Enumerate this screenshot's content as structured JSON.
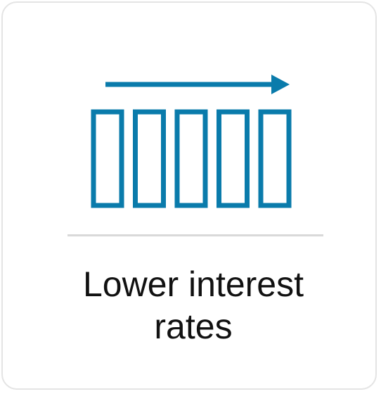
{
  "card": {
    "caption_line1": "Lower interest",
    "caption_line2": "rates"
  },
  "icon": {
    "name": "lower-interest-rates-icon",
    "color": "#0a7bab",
    "bar_count": 5
  },
  "colors": {
    "accent": "#0a7bab",
    "border": "#e4e4e4",
    "divider": "#d9d9d9",
    "text": "#111111"
  }
}
